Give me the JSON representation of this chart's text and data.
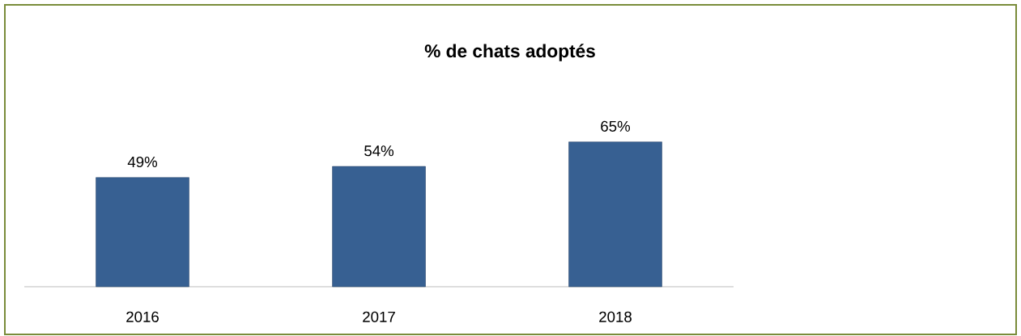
{
  "chart_data": {
    "type": "bar",
    "title": "%  de chats adoptés",
    "categories": [
      "2016",
      "2017",
      "2018"
    ],
    "values": [
      49,
      54,
      65
    ],
    "value_labels": [
      "49%",
      "54%",
      "65%"
    ],
    "color": "#376092"
  }
}
